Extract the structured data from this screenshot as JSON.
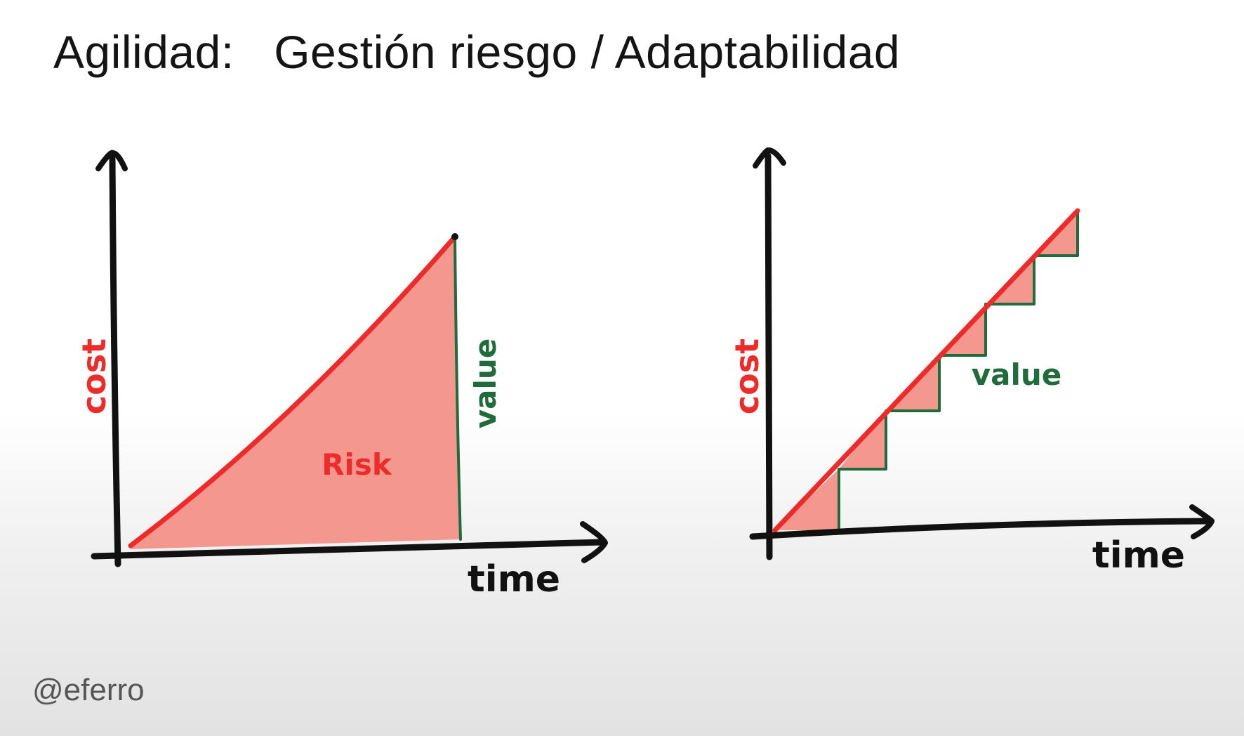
{
  "title": {
    "prefix": "Agilidad:",
    "main": "Gestión riesgo / Adaptabilidad"
  },
  "footer": {
    "handle": "@eferro"
  },
  "diagrams": [
    {
      "y_axis_label": "cost",
      "x_axis_label": "time",
      "vertical_label": "value",
      "area_label": "Risk"
    },
    {
      "y_axis_label": "cost",
      "x_axis_label": "time",
      "step_label": "value"
    }
  ],
  "colors": {
    "cost_line": "#ee2b2b",
    "risk_fill": "#f4978e",
    "value_line": "#1f6b3a",
    "axis": "#111111"
  }
}
